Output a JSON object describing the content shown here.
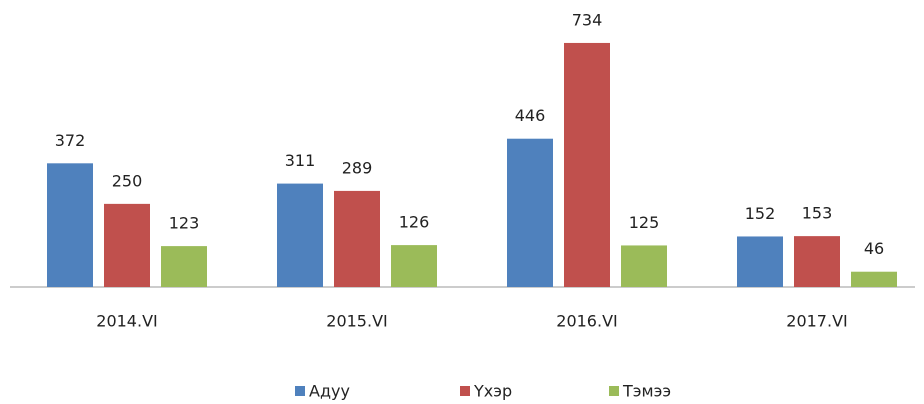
{
  "chart_data": {
    "type": "bar",
    "categories": [
      "2014.VI",
      "2015.VI",
      "2016.VI",
      "2017.VI"
    ],
    "series": [
      {
        "name": "Адуу",
        "color": "#4f81bd",
        "values": [
          372,
          311,
          446,
          152
        ]
      },
      {
        "name": "Үхэр",
        "color": "#c0504d",
        "values": [
          250,
          289,
          734,
          153
        ]
      },
      {
        "name": "Тэмээ",
        "color": "#9bbb59",
        "values": [
          123,
          126,
          125,
          46
        ]
      }
    ],
    "ylim": [
      0,
      800
    ]
  }
}
